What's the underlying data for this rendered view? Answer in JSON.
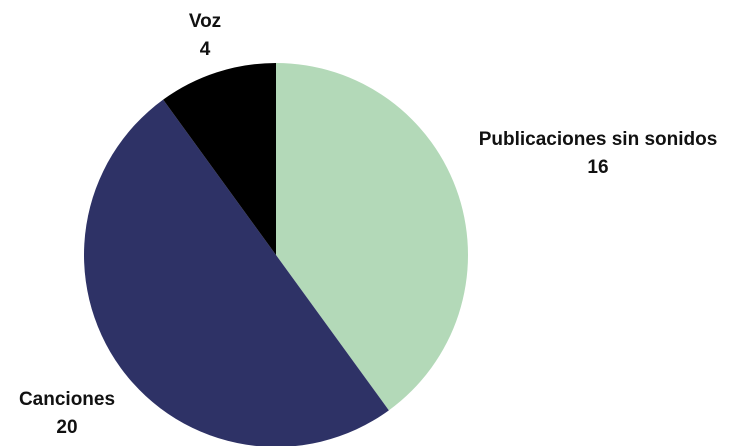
{
  "chart_data": {
    "type": "pie",
    "categories": [
      "Publicaciones sin sonidos",
      "Canciones",
      "Voz"
    ],
    "values": [
      16,
      20,
      4
    ],
    "colors": [
      "#b3d9b8",
      "#2e3266",
      "#000000"
    ]
  }
}
